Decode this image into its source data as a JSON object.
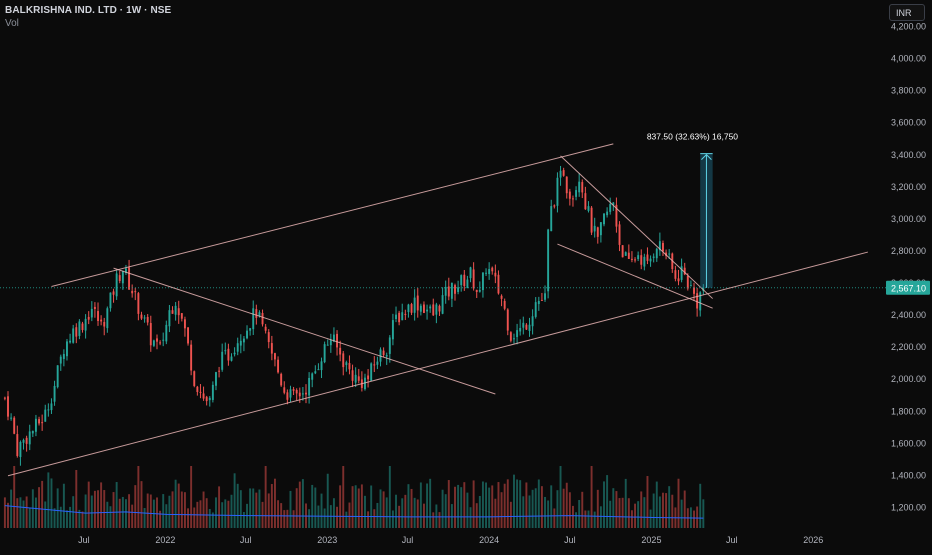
{
  "header": {
    "symbol_line": "BALKRISHNA IND. LTD · 1W · NSE",
    "volume_label": "Vol"
  },
  "currency_button": "INR",
  "last_price_label": "2,567.10",
  "measure_label": "837.50 (32.63%) 16,750",
  "colors": {
    "background": "#0b0b0b",
    "up_candle": "#26a69a",
    "down_candle": "#ef5350",
    "trendline": "#e8b4b4",
    "volume_ma": "#2962ff",
    "measure_fill": "#1f6f8b",
    "measure_line": "#5fd3e6",
    "price_label_bg": "#26a69a"
  },
  "chart_data": {
    "type": "candlestick",
    "title": "BALKRISHNA IND. LTD · 1W · NSE",
    "y_axis": {
      "ticks": [
        1200,
        1400,
        1600,
        1800,
        2000,
        2200,
        2400,
        2600,
        2800,
        3000,
        3200,
        3400,
        3600,
        3800,
        4000,
        4200
      ],
      "tick_labels": [
        "1,200.00",
        "1,400.00",
        "1,600.00",
        "1,800.00",
        "2,000.00",
        "2,200.00",
        "2,400.00",
        "2,600.00",
        "2,800.00",
        "3,000.00",
        "3,200.00",
        "3,400.00",
        "3,600.00",
        "3,800.00",
        "4,000.00",
        "4,200.00"
      ],
      "ylim": [
        1150,
        4260
      ]
    },
    "x_axis": {
      "ticks": [
        "2021-07-01",
        "2022-01-01",
        "2022-07-01",
        "2023-01-01",
        "2023-07-01",
        "2024-01-01",
        "2024-07-01",
        "2025-01-01",
        "2025-07-01",
        "2026-01-01"
      ],
      "tick_labels": [
        "Jul",
        "2022",
        "Jul",
        "2023",
        "Jul",
        "2024",
        "Jul",
        "2025",
        "Jul",
        "2026"
      ],
      "xlim": [
        "2021-01-11",
        "2026-07-20"
      ]
    },
    "last_price": 2567.1,
    "price_path": [
      [
        "2021-01-04",
        1880
      ],
      [
        "2021-01-18",
        1740
      ],
      [
        "2021-02-01",
        1560
      ],
      [
        "2021-02-22",
        1640
      ],
      [
        "2021-03-15",
        1700
      ],
      [
        "2021-04-05",
        1780
      ],
      [
        "2021-04-26",
        1960
      ],
      [
        "2021-05-17",
        2200
      ],
      [
        "2021-06-07",
        2300
      ],
      [
        "2021-06-28",
        2350
      ],
      [
        "2021-07-19",
        2440
      ],
      [
        "2021-08-09",
        2330
      ],
      [
        "2021-08-23",
        2420
      ],
      [
        "2021-09-13",
        2620
      ],
      [
        "2021-09-27",
        2690
      ],
      [
        "2021-10-18",
        2550
      ],
      [
        "2021-11-08",
        2400
      ],
      [
        "2021-11-29",
        2250
      ],
      [
        "2021-12-20",
        2180
      ],
      [
        "2022-01-10",
        2420
      ],
      [
        "2022-01-24",
        2500
      ],
      [
        "2022-02-14",
        2300
      ],
      [
        "2022-03-07",
        2000
      ],
      [
        "2022-03-28",
        1880
      ],
      [
        "2022-04-11",
        1850
      ],
      [
        "2022-05-02",
        2100
      ],
      [
        "2022-05-23",
        2150
      ],
      [
        "2022-06-13",
        2250
      ],
      [
        "2022-07-04",
        2330
      ],
      [
        "2022-07-25",
        2420
      ],
      [
        "2022-08-15",
        2250
      ],
      [
        "2022-09-05",
        2100
      ],
      [
        "2022-09-26",
        1930
      ],
      [
        "2022-10-17",
        1880
      ],
      [
        "2022-11-07",
        1920
      ],
      [
        "2022-11-28",
        2000
      ],
      [
        "2022-12-19",
        2150
      ],
      [
        "2023-01-09",
        2260
      ],
      [
        "2023-01-30",
        2150
      ],
      [
        "2023-02-20",
        2050
      ],
      [
        "2023-03-13",
        1980
      ],
      [
        "2023-04-03",
        2000
      ],
      [
        "2023-04-24",
        2130
      ],
      [
        "2023-05-15",
        2200
      ],
      [
        "2023-06-05",
        2380
      ],
      [
        "2023-06-26",
        2430
      ],
      [
        "2023-07-17",
        2480
      ],
      [
        "2023-08-07",
        2450
      ],
      [
        "2023-08-28",
        2400
      ],
      [
        "2023-09-18",
        2500
      ],
      [
        "2023-10-09",
        2560
      ],
      [
        "2023-10-30",
        2600
      ],
      [
        "2023-11-20",
        2650
      ],
      [
        "2023-12-11",
        2520
      ],
      [
        "2023-12-25",
        2700
      ],
      [
        "2024-01-08",
        2640
      ],
      [
        "2024-01-29",
        2500
      ],
      [
        "2024-02-19",
        2280
      ],
      [
        "2024-03-11",
        2300
      ],
      [
        "2024-04-01",
        2380
      ],
      [
        "2024-04-15",
        2480
      ],
      [
        "2024-05-06",
        2500
      ],
      [
        "2024-05-13",
        2900
      ],
      [
        "2024-05-20",
        3050
      ],
      [
        "2024-06-03",
        3200
      ],
      [
        "2024-06-17",
        3300
      ],
      [
        "2024-06-24",
        3200
      ],
      [
        "2024-07-08",
        3150
      ],
      [
        "2024-07-22",
        3280
      ],
      [
        "2024-08-05",
        3100
      ],
      [
        "2024-08-19",
        2950
      ],
      [
        "2024-09-02",
        2850
      ],
      [
        "2024-09-16",
        3000
      ],
      [
        "2024-10-07",
        3100
      ],
      [
        "2024-10-21",
        2850
      ],
      [
        "2024-11-11",
        2700
      ],
      [
        "2024-12-02",
        2780
      ],
      [
        "2024-12-23",
        2700
      ],
      [
        "2025-01-13",
        2850
      ],
      [
        "2025-02-03",
        2780
      ],
      [
        "2025-02-24",
        2620
      ],
      [
        "2025-03-10",
        2680
      ],
      [
        "2025-03-31",
        2560
      ],
      [
        "2025-04-14",
        2480
      ],
      [
        "2025-04-28",
        2567
      ]
    ],
    "volume_ma": [
      [
        "2021-01-04",
        0.36
      ],
      [
        "2021-04-05",
        0.3
      ],
      [
        "2021-07-05",
        0.24
      ],
      [
        "2021-10-04",
        0.26
      ],
      [
        "2022-01-03",
        0.22
      ],
      [
        "2022-07-04",
        0.2
      ],
      [
        "2023-01-02",
        0.19
      ],
      [
        "2023-07-03",
        0.18
      ],
      [
        "2024-01-01",
        0.18
      ],
      [
        "2024-07-01",
        0.2
      ],
      [
        "2025-01-06",
        0.17
      ],
      [
        "2025-04-28",
        0.16
      ]
    ],
    "trendlines": [
      {
        "from": [
          "2021-04-19",
          2575
        ],
        "to": [
          "2024-10-07",
          3465
        ]
      },
      {
        "from": [
          "2021-01-11",
          1395
        ],
        "to": [
          "2026-05-04",
          2790
        ]
      },
      {
        "from": [
          "2021-09-06",
          2690
        ],
        "to": [
          "2024-01-15",
          1905
        ]
      },
      {
        "from": [
          "2024-06-10",
          3390
        ],
        "to": [
          "2025-05-19",
          2500
        ]
      },
      {
        "from": [
          "2024-06-03",
          2840
        ],
        "to": [
          "2025-05-19",
          2440
        ]
      }
    ],
    "measure": {
      "from_date": "2025-04-21",
      "to_date": "2025-05-19",
      "from_price": 2567,
      "to_price": 3404,
      "change": 837.5,
      "change_pct": 32.63,
      "volume": 16750
    }
  }
}
